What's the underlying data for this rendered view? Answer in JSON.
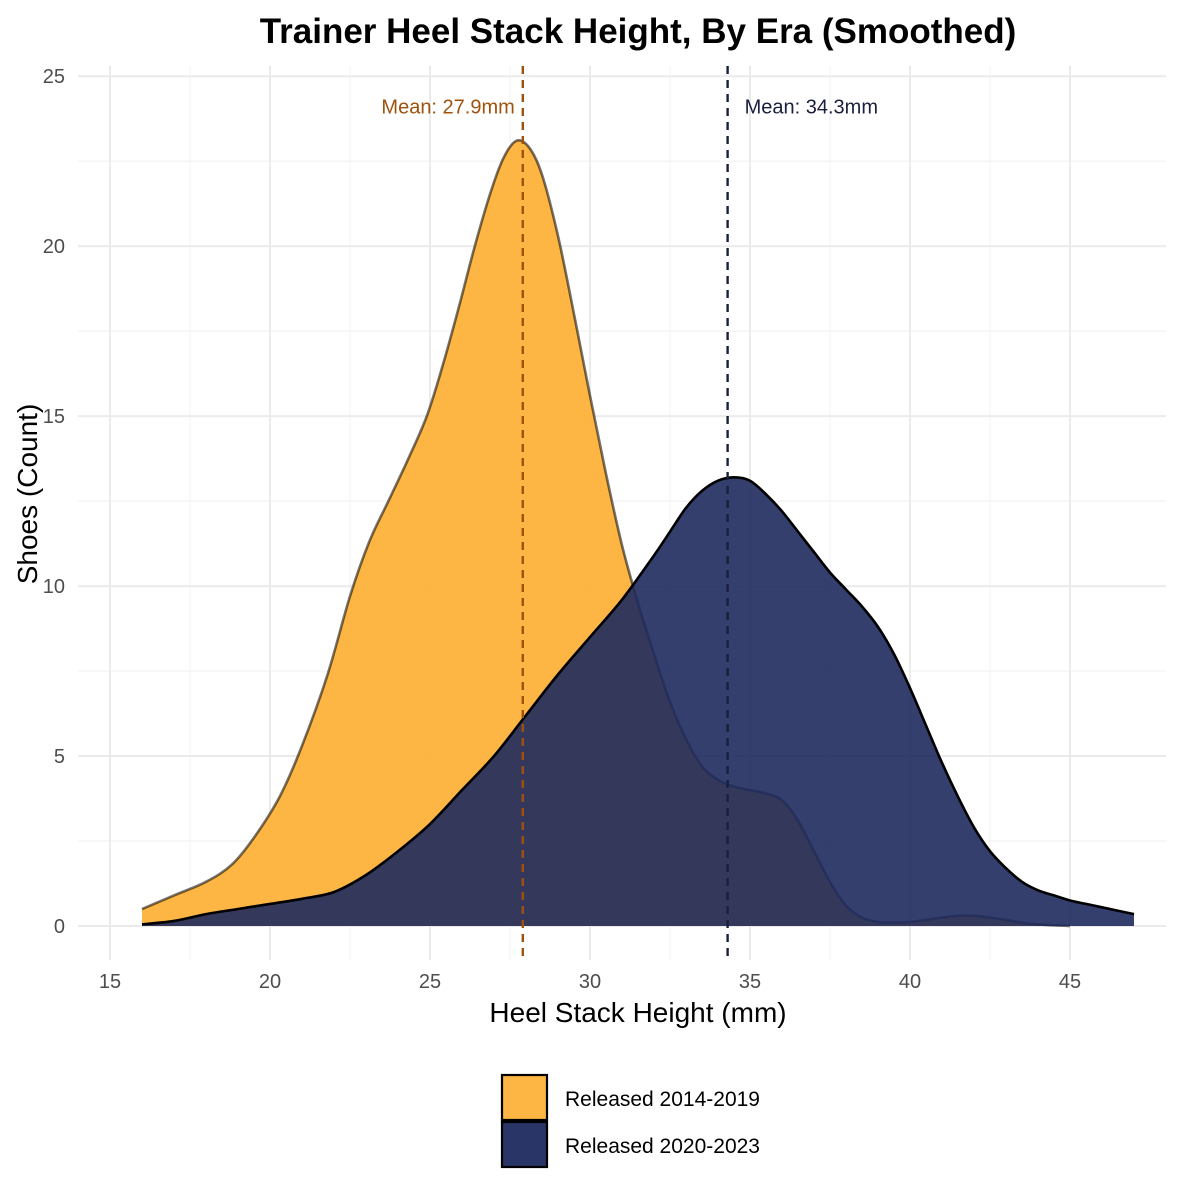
{
  "chart_data": {
    "type": "area",
    "title": "Trainer Heel Stack Height, By Era (Smoothed)",
    "xlabel": "Heel Stack Height (mm)",
    "ylabel": "Shoes (Count)",
    "xlim": [
      14,
      48
    ],
    "ylim": [
      -1,
      25.3
    ],
    "x_ticks": [
      15,
      20,
      25,
      30,
      35,
      40,
      45
    ],
    "y_ticks": [
      0,
      5,
      10,
      15,
      20,
      25
    ],
    "grid": true,
    "legend_position": "bottom",
    "series": [
      {
        "name": "Released 2014-2019",
        "color": "#fdb139",
        "x": [
          16,
          17,
          18,
          18.8,
          19.5,
          20.3,
          21,
          21.8,
          22.5,
          23.1,
          23.7,
          24.3,
          24.9,
          25.4,
          25.9,
          26.4,
          26.9,
          27.3,
          27.7,
          28.1,
          28.5,
          29,
          29.5,
          30,
          30.5,
          31,
          31.5,
          32,
          32.5,
          33,
          33.5,
          34,
          34.5,
          35,
          35.5,
          36,
          36.5,
          37,
          37.5,
          38,
          38.5,
          39,
          39.5,
          40,
          40.5,
          41,
          41.5,
          42,
          42.5,
          43,
          43.5,
          44,
          44.5,
          45
        ],
        "values": [
          0.5,
          0.9,
          1.3,
          1.8,
          2.6,
          3.8,
          5.3,
          7.4,
          9.7,
          11.3,
          12.5,
          13.7,
          15.0,
          16.5,
          18.2,
          20.0,
          21.6,
          22.6,
          23.1,
          22.9,
          22.1,
          20.3,
          18.0,
          15.6,
          13.3,
          11.2,
          9.5,
          8.0,
          6.6,
          5.5,
          4.7,
          4.3,
          4.1,
          4.0,
          3.9,
          3.7,
          3.1,
          2.2,
          1.3,
          0.6,
          0.25,
          0.12,
          0.1,
          0.12,
          0.18,
          0.25,
          0.3,
          0.3,
          0.25,
          0.18,
          0.1,
          0.05,
          0.02,
          0.0
        ]
      },
      {
        "name": "Released 2020-2023",
        "color": "#1e2a5e",
        "x": [
          16,
          17,
          18,
          19,
          20,
          21,
          22,
          23,
          24,
          25,
          26,
          27,
          28,
          29,
          30,
          31,
          32,
          32.5,
          33,
          33.5,
          34,
          34.5,
          35,
          35.5,
          36,
          36.5,
          37,
          37.5,
          38,
          38.5,
          39,
          39.5,
          40,
          40.5,
          41,
          41.5,
          42,
          42.5,
          43,
          43.5,
          44,
          44.5,
          45,
          45.5,
          46,
          46.5,
          47
        ],
        "values": [
          0.05,
          0.15,
          0.35,
          0.5,
          0.65,
          0.8,
          1.0,
          1.5,
          2.2,
          3.0,
          4.0,
          5.0,
          6.2,
          7.4,
          8.5,
          9.6,
          10.9,
          11.6,
          12.3,
          12.8,
          13.1,
          13.2,
          13.1,
          12.7,
          12.2,
          11.6,
          11.0,
          10.4,
          9.9,
          9.4,
          8.8,
          8.0,
          7.0,
          5.9,
          4.8,
          3.8,
          2.9,
          2.2,
          1.7,
          1.3,
          1.05,
          0.9,
          0.75,
          0.65,
          0.55,
          0.45,
          0.35
        ]
      }
    ],
    "annotations": [
      {
        "text": "Mean: 27.9mm",
        "x": 27.9,
        "color": "#a0520d"
      },
      {
        "text": "Mean: 34.3mm",
        "x": 34.3,
        "color": "#1a1f3d"
      }
    ]
  }
}
